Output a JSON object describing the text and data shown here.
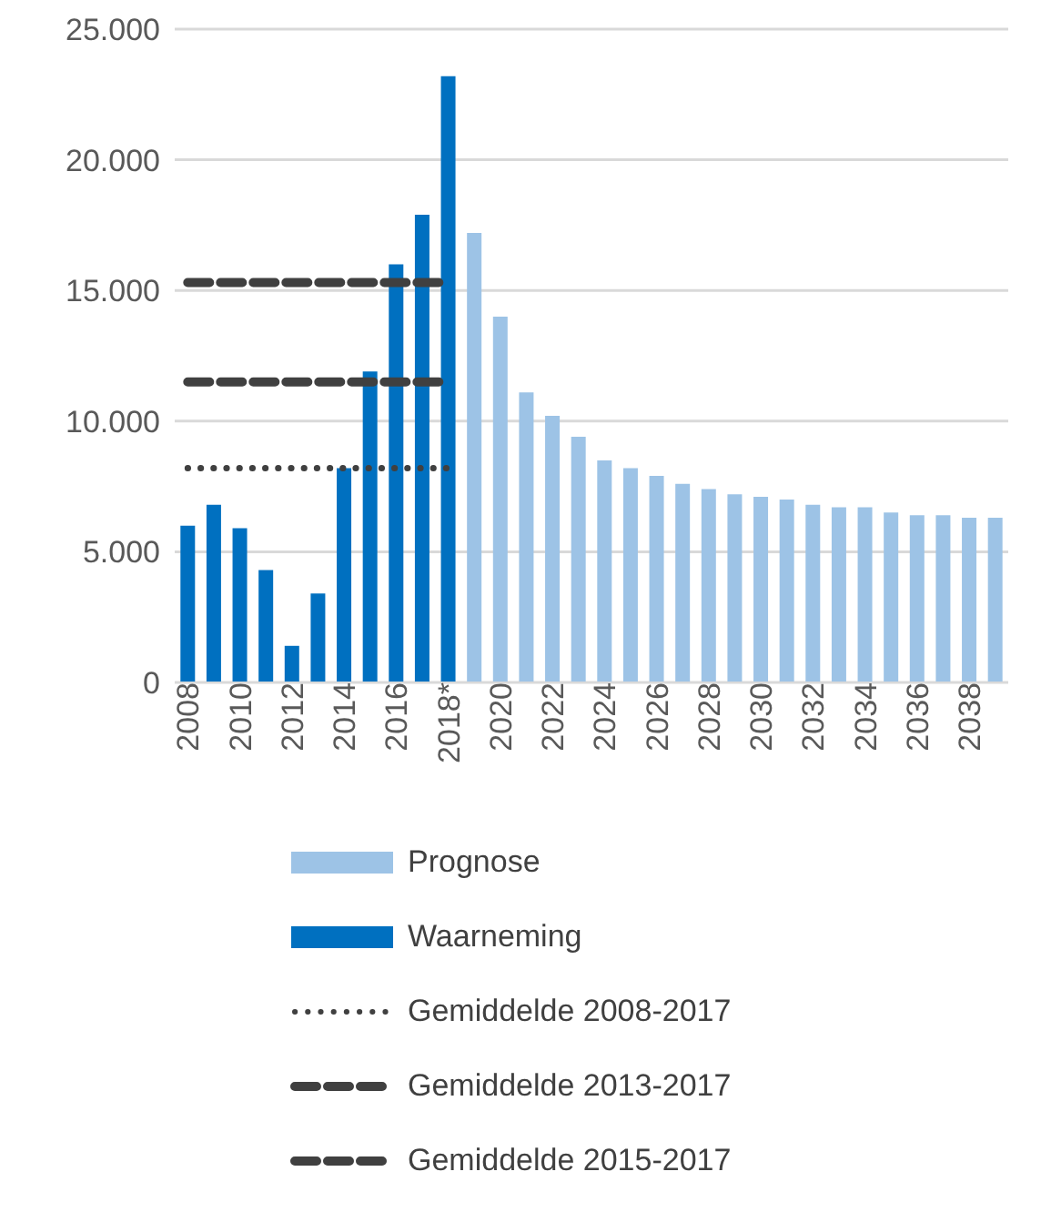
{
  "chart_data": {
    "type": "bar",
    "stacked": true,
    "categories": [
      "2008",
      null,
      "2010",
      null,
      "2012",
      null,
      "2014",
      null,
      "2016",
      null,
      "2018*",
      null,
      "2020",
      null,
      "2022",
      null,
      "2024",
      null,
      "2026",
      null,
      "2028",
      null,
      "2030",
      null,
      "2032",
      null,
      "2034",
      null,
      "2036",
      null,
      "2038",
      null
    ],
    "series": [
      {
        "name": "Prognose",
        "color": "#9dc3e6",
        "values": [
          null,
          null,
          null,
          null,
          null,
          null,
          null,
          null,
          null,
          null,
          null,
          17200,
          14000,
          11100,
          10200,
          9400,
          8500,
          8200,
          7900,
          7600,
          7400,
          7200,
          7100,
          7000,
          6800,
          6700,
          6700,
          6500,
          6400,
          6400,
          6300,
          6300
        ]
      },
      {
        "name": "Waarneming",
        "color": "#0070c0",
        "values": [
          6000,
          6800,
          5900,
          4300,
          1400,
          3400,
          8200,
          11900,
          16000,
          17900,
          23200,
          null,
          null,
          null,
          null,
          null,
          null,
          null,
          null,
          null,
          null,
          null,
          null,
          null,
          null,
          null,
          null,
          null,
          null,
          null,
          null,
          null
        ]
      },
      {
        "name": "Gemiddelde 2008-2017",
        "type": "line",
        "line_style": "dotted",
        "color": "#404040",
        "values": [
          8200,
          8200,
          8200,
          8200,
          8200,
          8200,
          8200,
          8200,
          8200,
          8200,
          8200,
          null,
          null,
          null,
          null,
          null,
          null,
          null,
          null,
          null,
          null,
          null,
          null,
          null,
          null,
          null,
          null,
          null,
          null,
          null,
          null,
          null
        ]
      },
      {
        "name": "Gemiddelde 2013-2017",
        "type": "line",
        "line_style": "dashed",
        "color": "#404040",
        "values": [
          11500,
          11500,
          11500,
          11500,
          11500,
          11500,
          11500,
          11500,
          11500,
          11500,
          11500,
          null,
          null,
          null,
          null,
          null,
          null,
          null,
          null,
          null,
          null,
          null,
          null,
          null,
          null,
          null,
          null,
          null,
          null,
          null,
          null,
          null
        ]
      },
      {
        "name": "Gemiddelde 2015-2017",
        "type": "line",
        "line_style": "dashed",
        "color": "#404040",
        "values": [
          15300,
          15300,
          15300,
          15300,
          15300,
          15300,
          15300,
          15300,
          15300,
          15300,
          15300,
          null,
          null,
          null,
          null,
          null,
          null,
          null,
          null,
          null,
          null,
          null,
          null,
          null,
          null,
          null,
          null,
          null,
          null,
          null,
          null,
          null
        ]
      }
    ],
    "ylim": [
      0,
      25000
    ],
    "yticks": [
      0,
      {
        "value": 5000,
        "label": "5.000"
      },
      {
        "value": 10000,
        "label": "10.000"
      },
      {
        "value": 15000,
        "label": "15.000"
      },
      {
        "value": 20000,
        "label": "20.000"
      },
      {
        "value": 25000,
        "label": "25.000"
      }
    ],
    "grid": "y",
    "legend": "bottom"
  }
}
